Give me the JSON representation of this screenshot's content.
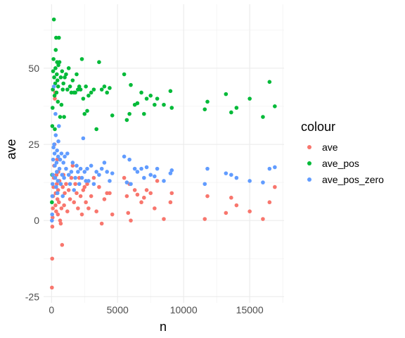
{
  "chart_data": {
    "type": "scatter",
    "xlabel": "n",
    "ylabel": "ave",
    "xlim": [
      -600,
      17600
    ],
    "ylim": [
      -27,
      71
    ],
    "x_ticks": [
      0,
      5000,
      10000,
      15000
    ],
    "x_tick_labels": [
      "0",
      "5000",
      "10000",
      "15000"
    ],
    "y_ticks": [
      -25,
      0,
      25,
      50
    ],
    "y_tick_labels": [
      "-25",
      "0",
      "25",
      "50"
    ],
    "grid": true,
    "legend": {
      "title": "colour",
      "placement": "right"
    },
    "series": [
      {
        "name": "ave",
        "color": "#F8766D",
        "points": [
          [
            30,
            -22
          ],
          [
            50,
            -12.5
          ],
          [
            60,
            -2
          ],
          [
            80,
            1
          ],
          [
            100,
            4
          ],
          [
            120,
            8
          ],
          [
            150,
            11
          ],
          [
            180,
            14
          ],
          [
            200,
            18
          ],
          [
            230,
            25
          ],
          [
            250,
            40
          ],
          [
            280,
            42
          ],
          [
            300,
            5
          ],
          [
            320,
            9
          ],
          [
            350,
            3
          ],
          [
            380,
            15
          ],
          [
            400,
            12
          ],
          [
            420,
            20
          ],
          [
            450,
            7
          ],
          [
            480,
            2
          ],
          [
            500,
            10
          ],
          [
            520,
            16
          ],
          [
            560,
            6
          ],
          [
            600,
            13
          ],
          [
            650,
            0
          ],
          [
            700,
            -1
          ],
          [
            750,
            4
          ],
          [
            800,
            -8
          ],
          [
            850,
            11
          ],
          [
            900,
            15
          ],
          [
            950,
            5
          ],
          [
            1000,
            9
          ],
          [
            1100,
            12
          ],
          [
            1200,
            3
          ],
          [
            1300,
            10
          ],
          [
            1400,
            7
          ],
          [
            1500,
            14
          ],
          [
            1600,
            18
          ],
          [
            1700,
            6
          ],
          [
            1800,
            12
          ],
          [
            1900,
            9
          ],
          [
            2000,
            4
          ],
          [
            2100,
            14
          ],
          [
            2200,
            8
          ],
          [
            2300,
            2
          ],
          [
            2400,
            10
          ],
          [
            2500,
            11
          ],
          [
            2600,
            6
          ],
          [
            2700,
            12
          ],
          [
            2800,
            4
          ],
          [
            3000,
            8
          ],
          [
            3200,
            14
          ],
          [
            3400,
            3
          ],
          [
            3600,
            11
          ],
          [
            3800,
            -1
          ],
          [
            4000,
            7
          ],
          [
            4200,
            9
          ],
          [
            4400,
            9
          ],
          [
            4600,
            2
          ],
          [
            5500,
            14
          ],
          [
            5700,
            8
          ],
          [
            5800,
            2.5
          ],
          [
            5900,
            12
          ],
          [
            6000,
            0
          ],
          [
            6300,
            10
          ],
          [
            6500,
            8.5
          ],
          [
            6800,
            6
          ],
          [
            7000,
            7.5
          ],
          [
            7200,
            10
          ],
          [
            7500,
            9
          ],
          [
            7800,
            4
          ],
          [
            8000,
            13
          ],
          [
            8500,
            0.5
          ],
          [
            9000,
            6
          ],
          [
            9100,
            9
          ],
          [
            11600,
            0.5
          ],
          [
            11800,
            8
          ],
          [
            13200,
            2.5
          ],
          [
            13600,
            7.5
          ],
          [
            14000,
            5
          ],
          [
            15000,
            3
          ],
          [
            16000,
            0.5
          ],
          [
            16500,
            6
          ],
          [
            16900,
            11
          ]
        ]
      },
      {
        "name": "ave_pos",
        "color": "#00BA38",
        "points": [
          [
            30,
            6
          ],
          [
            50,
            15
          ],
          [
            60,
            31
          ],
          [
            80,
            37
          ],
          [
            100,
            43
          ],
          [
            120,
            49
          ],
          [
            150,
            53
          ],
          [
            180,
            66
          ],
          [
            200,
            47
          ],
          [
            230,
            41
          ],
          [
            250,
            30
          ],
          [
            280,
            45
          ],
          [
            300,
            50
          ],
          [
            320,
            56
          ],
          [
            350,
            60
          ],
          [
            380,
            42
          ],
          [
            400,
            48
          ],
          [
            420,
            52
          ],
          [
            450,
            46
          ],
          [
            480,
            39
          ],
          [
            500,
            44
          ],
          [
            520,
            51
          ],
          [
            560,
            60
          ],
          [
            600,
            52
          ],
          [
            650,
            34
          ],
          [
            700,
            47
          ],
          [
            750,
            38
          ],
          [
            800,
            49
          ],
          [
            850,
            43
          ],
          [
            900,
            45
          ],
          [
            950,
            34
          ],
          [
            1000,
            47
          ],
          [
            1100,
            48
          ],
          [
            1200,
            43
          ],
          [
            1300,
            50
          ],
          [
            1400,
            44
          ],
          [
            1500,
            42
          ],
          [
            1600,
            46
          ],
          [
            1700,
            42
          ],
          [
            1800,
            42
          ],
          [
            1900,
            48
          ],
          [
            2000,
            43
          ],
          [
            2100,
            44
          ],
          [
            2200,
            43
          ],
          [
            2300,
            53
          ],
          [
            2400,
            40
          ],
          [
            2500,
            35
          ],
          [
            2600,
            44
          ],
          [
            2700,
            36
          ],
          [
            2800,
            41
          ],
          [
            3000,
            42
          ],
          [
            3200,
            43
          ],
          [
            3400,
            30
          ],
          [
            3600,
            52
          ],
          [
            3800,
            43
          ],
          [
            4000,
            44
          ],
          [
            4200,
            42
          ],
          [
            4400,
            43.5
          ],
          [
            4600,
            34.5
          ],
          [
            5500,
            48
          ],
          [
            5700,
            33
          ],
          [
            5900,
            35
          ],
          [
            6000,
            44.5
          ],
          [
            6300,
            38
          ],
          [
            6500,
            38.5
          ],
          [
            6800,
            42
          ],
          [
            7000,
            35
          ],
          [
            7200,
            40
          ],
          [
            7500,
            41
          ],
          [
            7800,
            38
          ],
          [
            8000,
            40
          ],
          [
            8500,
            38
          ],
          [
            9000,
            42.5
          ],
          [
            9100,
            37
          ],
          [
            11600,
            36.5
          ],
          [
            11800,
            39
          ],
          [
            13200,
            41.5
          ],
          [
            13600,
            35.5
          ],
          [
            14000,
            37
          ],
          [
            15000,
            40
          ],
          [
            16000,
            34
          ],
          [
            16500,
            45.5
          ],
          [
            16900,
            37.5
          ]
        ]
      },
      {
        "name": "ave_pos_zero",
        "color": "#619CFF",
        "points": [
          [
            30,
            0
          ],
          [
            50,
            2
          ],
          [
            60,
            8
          ],
          [
            80,
            12
          ],
          [
            100,
            15
          ],
          [
            120,
            20
          ],
          [
            150,
            24
          ],
          [
            180,
            44
          ],
          [
            200,
            25
          ],
          [
            230,
            22
          ],
          [
            250,
            18
          ],
          [
            280,
            14
          ],
          [
            300,
            35
          ],
          [
            320,
            28
          ],
          [
            350,
            11
          ],
          [
            380,
            19
          ],
          [
            400,
            16
          ],
          [
            420,
            23
          ],
          [
            450,
            9
          ],
          [
            480,
            13
          ],
          [
            500,
            21
          ],
          [
            520,
            26
          ],
          [
            560,
            31
          ],
          [
            600,
            17
          ],
          [
            650,
            20
          ],
          [
            700,
            12
          ],
          [
            750,
            22
          ],
          [
            800,
            15
          ],
          [
            850,
            8
          ],
          [
            900,
            19
          ],
          [
            950,
            14
          ],
          [
            1000,
            21
          ],
          [
            1100,
            17
          ],
          [
            1200,
            22
          ],
          [
            1300,
            15
          ],
          [
            1400,
            12
          ],
          [
            1500,
            16
          ],
          [
            1600,
            19
          ],
          [
            1700,
            10
          ],
          [
            1800,
            14
          ],
          [
            1900,
            18
          ],
          [
            2000,
            16
          ],
          [
            2100,
            12
          ],
          [
            2200,
            17
          ],
          [
            2300,
            14
          ],
          [
            2400,
            27
          ],
          [
            2500,
            16
          ],
          [
            2600,
            13
          ],
          [
            2700,
            17
          ],
          [
            2800,
            13
          ],
          [
            3000,
            18
          ],
          [
            3200,
            12
          ],
          [
            3400,
            16
          ],
          [
            3600,
            15
          ],
          [
            3800,
            17
          ],
          [
            4000,
            19
          ],
          [
            4200,
            16
          ],
          [
            4400,
            13
          ],
          [
            4600,
            15.5
          ],
          [
            5500,
            21
          ],
          [
            5700,
            12.5
          ],
          [
            5900,
            20
          ],
          [
            6000,
            12
          ],
          [
            6300,
            17
          ],
          [
            6500,
            16
          ],
          [
            6800,
            17
          ],
          [
            7000,
            14
          ],
          [
            7200,
            17.5
          ],
          [
            7500,
            15
          ],
          [
            7800,
            14.5
          ],
          [
            8000,
            17
          ],
          [
            8500,
            13
          ],
          [
            9000,
            15.5
          ],
          [
            9100,
            16.5
          ],
          [
            11600,
            12
          ],
          [
            11800,
            17
          ],
          [
            13200,
            15.5
          ],
          [
            13600,
            15
          ],
          [
            14000,
            14
          ],
          [
            15000,
            13
          ],
          [
            16000,
            12.5
          ],
          [
            16500,
            17
          ],
          [
            16900,
            17.5
          ]
        ]
      }
    ]
  }
}
